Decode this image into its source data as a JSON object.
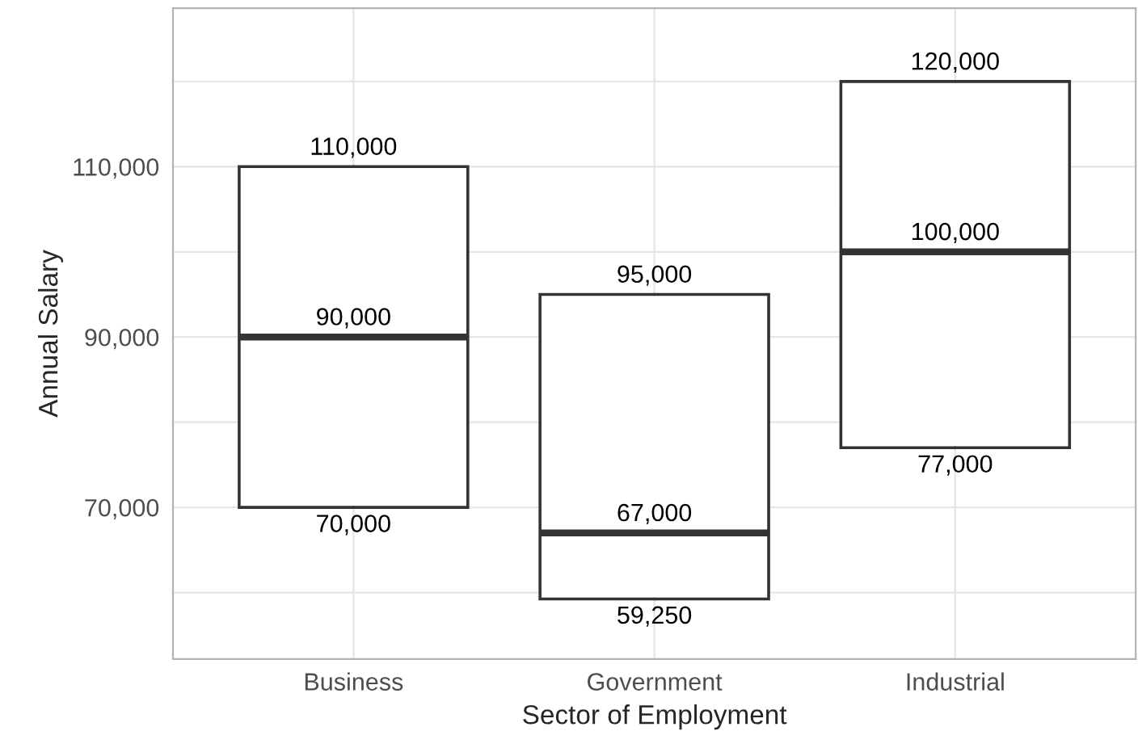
{
  "chart_data": {
    "type": "box",
    "xlabel": "Sector of Employment",
    "ylabel": "Annual Salary",
    "categories": [
      "Business",
      "Government",
      "Industrial"
    ],
    "boxes": [
      {
        "low": 70000,
        "q1": 70000,
        "median": 90000,
        "q3": 110000,
        "high": 110000
      },
      {
        "low": 59250,
        "q1": 59250,
        "median": 67000,
        "q3": 95000,
        "high": 95000
      },
      {
        "low": 77000,
        "q1": 77000,
        "median": 100000,
        "q3": 120000,
        "high": 120000
      }
    ],
    "ylim": [
      52200,
      128600
    ],
    "yticks": [
      {
        "value": 60000,
        "label": null
      },
      {
        "value": 70000,
        "label": "70,000"
      },
      {
        "value": 80000,
        "label": null
      },
      {
        "value": 90000,
        "label": "90,000"
      },
      {
        "value": 100000,
        "label": null
      },
      {
        "value": 110000,
        "label": "110,000"
      },
      {
        "value": 120000,
        "label": null
      }
    ],
    "grid": true,
    "annotations": [
      {
        "text": "110,000",
        "x": "Business",
        "y": 110000
      },
      {
        "text": "90,000",
        "x": "Business",
        "y": 90000
      },
      {
        "text": "70,000",
        "x": "Business",
        "y": 70000
      },
      {
        "text": "95,000",
        "x": "Government",
        "y": 95000
      },
      {
        "text": "67,000",
        "x": "Government",
        "y": 67000
      },
      {
        "text": "59,250",
        "x": "Government",
        "y": 59250
      },
      {
        "text": "120,000",
        "x": "Industrial",
        "y": 120000
      },
      {
        "text": "100,000",
        "x": "Industrial",
        "y": 100000
      },
      {
        "text": "77,000",
        "x": "Industrial",
        "y": 77000
      }
    ]
  }
}
